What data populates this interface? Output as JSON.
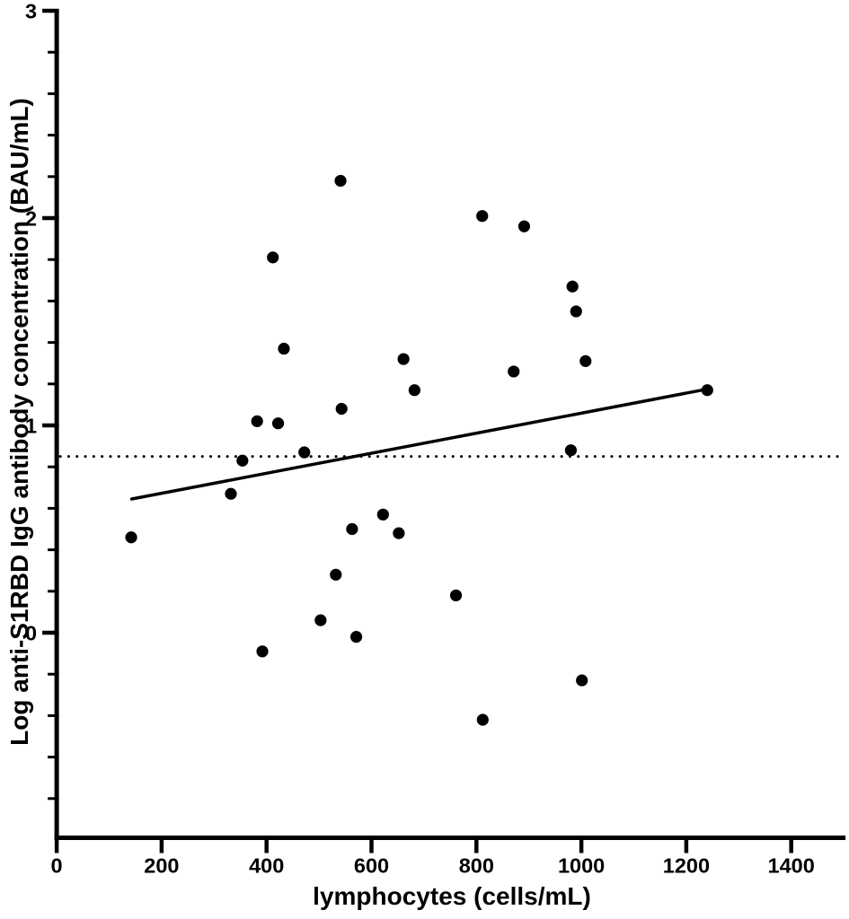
{
  "chart_data": {
    "type": "scatter",
    "title": "",
    "xlabel": "lymphocytes (cells/mL)",
    "ylabel": "Log anti-S1RBD IgG antibody concentration (BAU/mL)",
    "xlim": [
      0,
      1500
    ],
    "ylim": [
      -1,
      3
    ],
    "x_tick_labels": [
      "0",
      "200",
      "400",
      "600",
      "800",
      "1000",
      "1200",
      "1400"
    ],
    "x_tick_values": [
      0,
      200,
      400,
      600,
      800,
      1000,
      1200,
      1400
    ],
    "y_tick_labels": [
      "0",
      "1",
      "2",
      "3"
    ],
    "y_tick_values": [
      0,
      1,
      2,
      3
    ],
    "y_minor_tick_step": 0.2,
    "grid": false,
    "legend": null,
    "marker": "filled-circle",
    "points": [
      [
        142,
        0.46
      ],
      [
        332,
        0.67
      ],
      [
        354,
        0.83
      ],
      [
        382,
        1.02
      ],
      [
        392,
        -0.09
      ],
      [
        412,
        1.81
      ],
      [
        422,
        1.01
      ],
      [
        433,
        1.37
      ],
      [
        472,
        0.87
      ],
      [
        503,
        0.06
      ],
      [
        532,
        0.28
      ],
      [
        541,
        2.18
      ],
      [
        543,
        1.08
      ],
      [
        563,
        0.5
      ],
      [
        571,
        -0.02
      ],
      [
        622,
        0.57
      ],
      [
        652,
        0.48
      ],
      [
        661,
        1.32
      ],
      [
        682,
        1.17
      ],
      [
        761,
        0.18
      ],
      [
        811,
        2.01
      ],
      [
        812,
        -0.42
      ],
      [
        871,
        1.26
      ],
      [
        891,
        1.96
      ],
      [
        980,
        0.88
      ],
      [
        983,
        1.67
      ],
      [
        990,
        1.55
      ],
      [
        1001,
        -0.23
      ],
      [
        1008,
        1.31
      ],
      [
        1240,
        1.17
      ]
    ],
    "regression_line": {
      "x1": 143,
      "y1": 0.645,
      "x2": 1240,
      "y2": 1.175
    },
    "reference_line": {
      "y": 0.85,
      "style": "dotted"
    },
    "colors": {
      "points": "#000000",
      "lines": "#000000",
      "axis": "#000000",
      "background": "#ffffff"
    }
  }
}
